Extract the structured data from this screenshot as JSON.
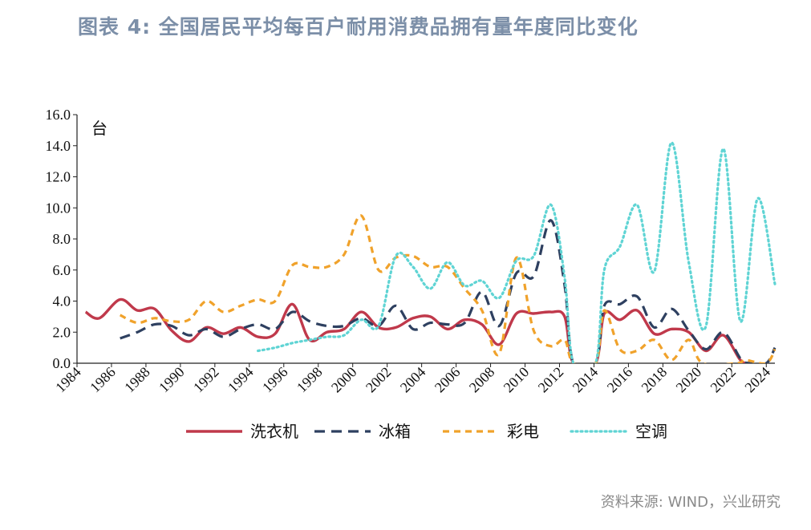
{
  "title": "图表 4: 全国居民平均每百户耐用消费品拥有量年度同比变化",
  "source": "资料来源: WIND，兴业研究",
  "chart_data": {
    "type": "line",
    "unit_label": "台",
    "x_ticks": [
      "1984",
      "1986",
      "1988",
      "1990",
      "1992",
      "1994",
      "1996",
      "1998",
      "2000",
      "2002",
      "2004",
      "2006",
      "2008",
      "2010",
      "2012",
      "2014",
      "2016",
      "2018",
      "2020",
      "2022",
      "2024"
    ],
    "y_ticks": [
      "0.0",
      "2.0",
      "4.0",
      "6.0",
      "8.0",
      "10.0",
      "12.0",
      "14.0",
      "16.0"
    ],
    "xlim": [
      1984,
      2024.5
    ],
    "ylim": [
      0,
      16
    ],
    "grid": false,
    "legend_position": "bottom",
    "series": [
      {
        "name": "洗衣机",
        "color": "#c0394b",
        "dash": "solid",
        "points": [
          [
            1984.5,
            3.3
          ],
          [
            1985.3,
            2.9
          ],
          [
            1986.5,
            4.1
          ],
          [
            1987.5,
            3.4
          ],
          [
            1988.5,
            3.5
          ],
          [
            1989.5,
            2.1
          ],
          [
            1990.5,
            1.4
          ],
          [
            1991.5,
            2.3
          ],
          [
            1992.5,
            1.9
          ],
          [
            1993.5,
            2.3
          ],
          [
            1994.5,
            1.7
          ],
          [
            1995.5,
            1.9
          ],
          [
            1996.5,
            3.8
          ],
          [
            1997.5,
            1.5
          ],
          [
            1998.5,
            2.0
          ],
          [
            1999.5,
            2.2
          ],
          [
            2000.5,
            3.3
          ],
          [
            2001.5,
            2.3
          ],
          [
            2002.5,
            2.3
          ],
          [
            2003.5,
            2.9
          ],
          [
            2004.5,
            3.0
          ],
          [
            2005.5,
            2.2
          ],
          [
            2006.5,
            2.8
          ],
          [
            2007.5,
            2.5
          ],
          [
            2008.5,
            1.2
          ],
          [
            2009.5,
            3.2
          ],
          [
            2010.5,
            3.2
          ],
          [
            2011.5,
            3.3
          ],
          [
            2012.3,
            3.0
          ],
          [
            2012.8,
            0.0
          ],
          [
            2014.1,
            0.0
          ],
          [
            2014.6,
            3.2
          ],
          [
            2015.5,
            2.8
          ],
          [
            2016.5,
            3.4
          ],
          [
            2017.5,
            1.9
          ],
          [
            2018.5,
            2.2
          ],
          [
            2019.5,
            2.0
          ],
          [
            2020.5,
            0.8
          ],
          [
            2021.5,
            1.8
          ],
          [
            2022.5,
            0.2
          ],
          [
            2023.0,
            0.0
          ]
        ]
      },
      {
        "name": "冰箱",
        "color": "#2e4060",
        "dash": "long-dash",
        "points": [
          [
            1986.5,
            1.6
          ],
          [
            1987.5,
            2.0
          ],
          [
            1988.5,
            2.5
          ],
          [
            1989.5,
            2.4
          ],
          [
            1990.5,
            1.8
          ],
          [
            1991.5,
            2.2
          ],
          [
            1992.5,
            1.7
          ],
          [
            1993.5,
            2.2
          ],
          [
            1994.5,
            2.5
          ],
          [
            1995.5,
            2.2
          ],
          [
            1996.5,
            3.3
          ],
          [
            1997.5,
            2.7
          ],
          [
            1998.5,
            2.4
          ],
          [
            1999.5,
            2.4
          ],
          [
            2000.5,
            2.9
          ],
          [
            2001.5,
            2.4
          ],
          [
            2002.5,
            3.7
          ],
          [
            2003.5,
            2.2
          ],
          [
            2004.5,
            2.6
          ],
          [
            2005.5,
            2.5
          ],
          [
            2006.5,
            2.6
          ],
          [
            2007.5,
            4.6
          ],
          [
            2008.5,
            2.4
          ],
          [
            2009.5,
            5.8
          ],
          [
            2010.5,
            5.6
          ],
          [
            2011.5,
            9.2
          ],
          [
            2012.3,
            5.0
          ],
          [
            2012.8,
            0.0
          ],
          [
            2014.1,
            0.0
          ],
          [
            2014.6,
            3.7
          ],
          [
            2015.5,
            3.8
          ],
          [
            2016.5,
            4.3
          ],
          [
            2017.5,
            2.3
          ],
          [
            2018.5,
            3.5
          ],
          [
            2019.5,
            2.1
          ],
          [
            2020.5,
            0.9
          ],
          [
            2021.5,
            2.0
          ],
          [
            2022.5,
            0.3
          ],
          [
            2023.0,
            0.0
          ],
          [
            2024.0,
            0.0
          ],
          [
            2024.5,
            1.0
          ]
        ]
      },
      {
        "name": "彩电",
        "color": "#f0a22b",
        "dash": "short-dash",
        "points": [
          [
            1986.5,
            3.1
          ],
          [
            1987.5,
            2.6
          ],
          [
            1988.5,
            2.9
          ],
          [
            1989.5,
            2.7
          ],
          [
            1990.5,
            2.8
          ],
          [
            1991.5,
            4.0
          ],
          [
            1992.5,
            3.3
          ],
          [
            1993.5,
            3.7
          ],
          [
            1994.5,
            4.1
          ],
          [
            1995.5,
            4.0
          ],
          [
            1996.5,
            6.3
          ],
          [
            1997.5,
            6.2
          ],
          [
            1998.5,
            6.2
          ],
          [
            1999.5,
            7.0
          ],
          [
            2000.5,
            9.5
          ],
          [
            2001.5,
            6.0
          ],
          [
            2002.5,
            6.8
          ],
          [
            2003.5,
            6.9
          ],
          [
            2004.5,
            6.2
          ],
          [
            2005.5,
            6.2
          ],
          [
            2006.5,
            4.8
          ],
          [
            2007.5,
            3.4
          ],
          [
            2008.5,
            0.6
          ],
          [
            2009.5,
            6.8
          ],
          [
            2010.5,
            2.1
          ],
          [
            2011.5,
            1.1
          ],
          [
            2012.3,
            1.5
          ],
          [
            2012.8,
            0.0
          ],
          [
            2014.1,
            0.0
          ],
          [
            2014.6,
            3.4
          ],
          [
            2015.5,
            0.9
          ],
          [
            2016.5,
            0.8
          ],
          [
            2017.5,
            1.5
          ],
          [
            2018.5,
            0.2
          ],
          [
            2019.5,
            1.5
          ],
          [
            2020.3,
            0.0
          ],
          [
            2022.3,
            0.0
          ],
          [
            2022.8,
            0.2
          ],
          [
            2024.0,
            0.0
          ],
          [
            2024.5,
            0.9
          ]
        ]
      },
      {
        "name": "空调",
        "color": "#5fd4d4",
        "dash": "dotted",
        "points": [
          [
            1994.5,
            0.8
          ],
          [
            1995.5,
            1.0
          ],
          [
            1996.5,
            1.3
          ],
          [
            1997.5,
            1.5
          ],
          [
            1998.5,
            1.7
          ],
          [
            1999.5,
            1.8
          ],
          [
            2000.5,
            2.8
          ],
          [
            2001.5,
            2.4
          ],
          [
            2002.5,
            6.9
          ],
          [
            2003.5,
            6.2
          ],
          [
            2004.5,
            4.8
          ],
          [
            2005.5,
            6.5
          ],
          [
            2006.5,
            5.0
          ],
          [
            2007.5,
            5.3
          ],
          [
            2008.5,
            4.2
          ],
          [
            2009.5,
            6.6
          ],
          [
            2010.5,
            6.9
          ],
          [
            2011.5,
            10.2
          ],
          [
            2012.3,
            5.5
          ],
          [
            2012.8,
            0.0
          ],
          [
            2014.1,
            0.0
          ],
          [
            2014.6,
            6.0
          ],
          [
            2015.5,
            7.5
          ],
          [
            2016.5,
            10.2
          ],
          [
            2017.5,
            5.9
          ],
          [
            2018.5,
            14.2
          ],
          [
            2019.5,
            6.5
          ],
          [
            2020.5,
            2.4
          ],
          [
            2021.5,
            13.8
          ],
          [
            2022.5,
            2.7
          ],
          [
            2023.5,
            10.6
          ],
          [
            2024.5,
            5.1
          ]
        ]
      }
    ]
  }
}
